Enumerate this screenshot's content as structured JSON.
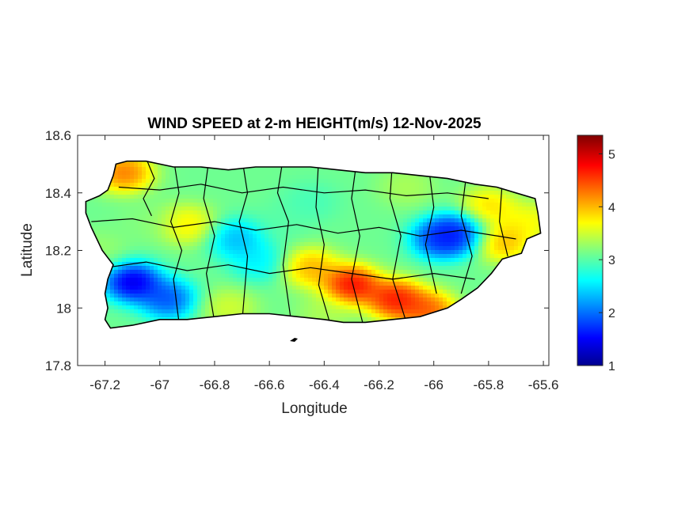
{
  "chart_data": {
    "type": "heatmap",
    "title": "WIND SPEED at 2-m HEIGHT(m/s) 12-Nov-2025",
    "xlabel": "Longitude",
    "ylabel": "Latitude",
    "xlim": [
      -67.3,
      -65.58
    ],
    "ylim": [
      17.8,
      18.6
    ],
    "x_ticks": [
      -67.2,
      -67,
      -66.8,
      -66.6,
      -66.4,
      -66.2,
      -66,
      -65.8,
      -65.6
    ],
    "x_tick_labels": [
      "-67.2",
      "-67",
      "-66.8",
      "-66.6",
      "-66.4",
      "-66.2",
      "-66",
      "-65.8",
      "-65.6"
    ],
    "y_ticks": [
      17.8,
      18,
      18.2,
      18.4,
      18.6
    ],
    "y_tick_labels": [
      "17.8",
      "18",
      "18.2",
      "18.4",
      "18.6"
    ],
    "colorbar": {
      "colormap": "jet",
      "range": [
        1,
        5.35
      ],
      "ticks": [
        1,
        2,
        3,
        4,
        5
      ],
      "tick_labels": [
        "1",
        "2",
        "3",
        "4",
        "5"
      ]
    },
    "field": {
      "base_value": 3.1,
      "features": [
        {
          "lon": -67.1,
          "lat": 18.09,
          "value": 1.1
        },
        {
          "lon": -66.97,
          "lat": 18.03,
          "value": 1.7
        },
        {
          "lon": -67.05,
          "lat": 18.3,
          "value": 3.2
        },
        {
          "lon": -66.72,
          "lat": 18.24,
          "value": 2.2
        },
        {
          "lon": -66.64,
          "lat": 18.16,
          "value": 2.5
        },
        {
          "lon": -66.9,
          "lat": 18.29,
          "value": 3.9
        },
        {
          "lon": -67.13,
          "lat": 18.47,
          "value": 4.5
        },
        {
          "lon": -66.3,
          "lat": 18.08,
          "value": 5.1
        },
        {
          "lon": -66.14,
          "lat": 18.03,
          "value": 5.0
        },
        {
          "lon": -66.02,
          "lat": 17.99,
          "value": 4.6
        },
        {
          "lon": -66.45,
          "lat": 18.14,
          "value": 4.2
        },
        {
          "lon": -65.98,
          "lat": 18.24,
          "value": 1.6
        },
        {
          "lon": -65.91,
          "lat": 18.26,
          "value": 1.5
        },
        {
          "lon": -65.75,
          "lat": 18.23,
          "value": 4.2
        },
        {
          "lon": -65.8,
          "lat": 18.35,
          "value": 4.0
        },
        {
          "lon": -65.65,
          "lat": 18.3,
          "value": 3.8
        },
        {
          "lon": -66.75,
          "lat": 18.0,
          "value": 3.6
        },
        {
          "lon": -66.4,
          "lat": 17.98,
          "value": 3.4
        },
        {
          "lon": -66.45,
          "lat": 18.37,
          "value": 2.9
        },
        {
          "lon": -66.1,
          "lat": 18.42,
          "value": 3.4
        },
        {
          "lon": -67.22,
          "lat": 18.2,
          "value": 3.3
        },
        {
          "lon": -66.55,
          "lat": 18.3,
          "value": 3.0
        }
      ]
    },
    "island_outline": [
      [
        -67.27,
        18.37
      ],
      [
        -67.22,
        18.39
      ],
      [
        -67.19,
        18.41
      ],
      [
        -67.17,
        18.46
      ],
      [
        -67.16,
        18.5
      ],
      [
        -67.12,
        18.51
      ],
      [
        -67.05,
        18.51
      ],
      [
        -66.95,
        18.49
      ],
      [
        -66.85,
        18.49
      ],
      [
        -66.75,
        18.48
      ],
      [
        -66.65,
        18.49
      ],
      [
        -66.55,
        18.49
      ],
      [
        -66.45,
        18.49
      ],
      [
        -66.35,
        18.48
      ],
      [
        -66.25,
        18.47
      ],
      [
        -66.15,
        18.47
      ],
      [
        -66.05,
        18.46
      ],
      [
        -65.95,
        18.45
      ],
      [
        -65.85,
        18.43
      ],
      [
        -65.77,
        18.42
      ],
      [
        -65.7,
        18.4
      ],
      [
        -65.63,
        18.38
      ],
      [
        -65.62,
        18.33
      ],
      [
        -65.61,
        18.26
      ],
      [
        -65.66,
        18.24
      ],
      [
        -65.68,
        18.19
      ],
      [
        -65.75,
        18.17
      ],
      [
        -65.79,
        18.12
      ],
      [
        -65.84,
        18.07
      ],
      [
        -65.9,
        18.03
      ],
      [
        -65.95,
        18.0
      ],
      [
        -66.05,
        17.97
      ],
      [
        -66.15,
        17.96
      ],
      [
        -66.25,
        17.95
      ],
      [
        -66.33,
        17.95
      ],
      [
        -66.4,
        17.96
      ],
      [
        -66.5,
        17.97
      ],
      [
        -66.6,
        17.98
      ],
      [
        -66.7,
        17.98
      ],
      [
        -66.8,
        17.97
      ],
      [
        -66.9,
        17.96
      ],
      [
        -67.0,
        17.96
      ],
      [
        -67.1,
        17.94
      ],
      [
        -67.18,
        17.93
      ],
      [
        -67.2,
        17.96
      ],
      [
        -67.19,
        18.0
      ],
      [
        -67.2,
        18.05
      ],
      [
        -67.19,
        18.1
      ],
      [
        -67.17,
        18.15
      ],
      [
        -67.21,
        18.2
      ],
      [
        -67.25,
        18.28
      ],
      [
        -67.27,
        18.33
      ]
    ]
  }
}
